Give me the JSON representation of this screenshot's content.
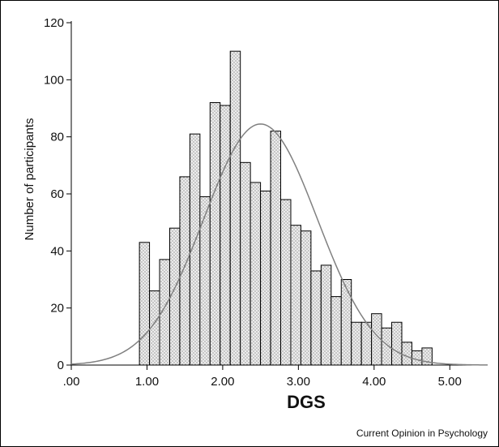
{
  "chart_data": {
    "type": "bar",
    "xlabel": "DGS",
    "ylabel": "Number of participants",
    "xlim": [
      0,
      5.5
    ],
    "ylim": [
      0,
      120
    ],
    "x_ticks": [
      0,
      1,
      2,
      3,
      4,
      5
    ],
    "x_tick_labels": [
      ".00",
      "1.00",
      "2.00",
      "3.00",
      "4.00",
      "5.00"
    ],
    "y_ticks": [
      0,
      20,
      40,
      60,
      80,
      100,
      120
    ],
    "y_tick_labels": [
      "0",
      "20",
      "40",
      "60",
      "80",
      "100",
      "120"
    ],
    "bin_width": 0.1333,
    "bin_start": 0.9,
    "values": [
      43,
      26,
      37,
      48,
      66,
      81,
      59,
      92,
      91,
      110,
      71,
      64,
      61,
      82,
      58,
      49,
      47,
      33,
      35,
      24,
      30,
      15,
      15,
      18,
      13,
      15,
      8,
      5,
      6
    ],
    "normal_curve": {
      "mean": 2.5,
      "sd": 0.75,
      "peak": 84.5
    },
    "colors": {
      "bar_fill": "#e6e6e6",
      "bar_stroke": "#000000",
      "curve": "#808080"
    }
  },
  "source_note": "Current Opinion in Psychology"
}
